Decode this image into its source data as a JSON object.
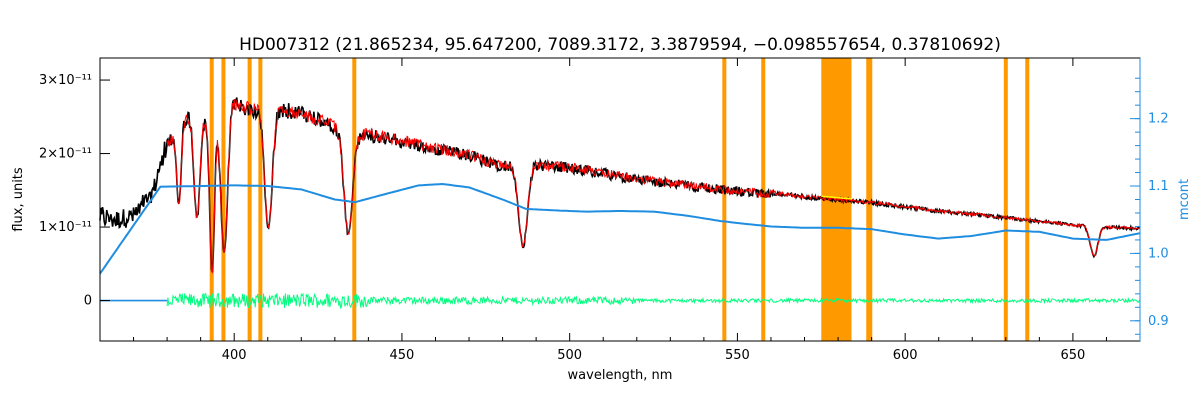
{
  "chart_data": {
    "type": "line",
    "title": "HD007312   (21.865234, 95.647200, 7089.3172, 3.3879594, −0.098557654, 0.37810692)",
    "xlabel": "wavelength, nm",
    "ylabel": "flux, units",
    "ylabel_right": "mcont",
    "xlim": [
      360,
      670
    ],
    "ylim": [
      -5.5e-12,
      3.3e-11
    ],
    "ylim_right": [
      0.87,
      1.29
    ],
    "x_ticks": [
      {
        "value": 400,
        "label": "400"
      },
      {
        "value": 450,
        "label": "450"
      },
      {
        "value": 500,
        "label": "500"
      },
      {
        "value": 550,
        "label": "550"
      },
      {
        "value": 600,
        "label": "600"
      },
      {
        "value": 650,
        "label": "650"
      }
    ],
    "y_ticks": [
      {
        "value": 0,
        "label": "0"
      },
      {
        "value": 1e-11,
        "label": "1×10⁻¹¹"
      },
      {
        "value": 2e-11,
        "label": "2×10⁻¹¹"
      },
      {
        "value": 3e-11,
        "label": "3×10⁻¹¹"
      }
    ],
    "y_ticks_right": [
      {
        "value": 0.9,
        "label": "0.9"
      },
      {
        "value": 1.0,
        "label": "1.0"
      },
      {
        "value": 1.1,
        "label": "1.1"
      },
      {
        "value": 1.2,
        "label": "1.2"
      }
    ],
    "colors": {
      "observed": "#000000",
      "model": "#ff0000",
      "continuum": "#1f8de0",
      "residual": "#00ff7f",
      "mask": "#ff9900",
      "highlight": "#ffff00",
      "frame": "#000000",
      "right_axis": "#1f8de0"
    },
    "masked_lines_nm": [
      393.3,
      396.8,
      404.6,
      407.8,
      435.8,
      546.1,
      557.7,
      589.0,
      589.6,
      630.0,
      636.4
    ],
    "masked_band_nm": [
      575.0,
      584.0
    ],
    "continuum_series": {
      "name": "mcont",
      "x": [
        360,
        378,
        390,
        400,
        410,
        420,
        430,
        436,
        445,
        455,
        462,
        470,
        480,
        487,
        495,
        505,
        515,
        525,
        535,
        545,
        552,
        560,
        570,
        580,
        590,
        600,
        610,
        620,
        630,
        640,
        650,
        660,
        670
      ],
      "y": [
        0.97,
        1.099,
        1.1,
        1.101,
        1.1,
        1.095,
        1.08,
        1.076,
        1.088,
        1.101,
        1.103,
        1.098,
        1.08,
        1.066,
        1.064,
        1.062,
        1.063,
        1.062,
        1.056,
        1.048,
        1.044,
        1.04,
        1.038,
        1.038,
        1.036,
        1.028,
        1.022,
        1.026,
        1.034,
        1.032,
        1.022,
        1.02,
        1.03
      ]
    },
    "flux_anchors": {
      "x": [
        360,
        365,
        370,
        375,
        380,
        385,
        390,
        395,
        400,
        405,
        410,
        415,
        420,
        425,
        430,
        435,
        440,
        445,
        450,
        455,
        460,
        470,
        480,
        490,
        500,
        510,
        520,
        530,
        540,
        550,
        560,
        570,
        580,
        590,
        600,
        610,
        620,
        630,
        640,
        650,
        660,
        670
      ],
      "y": [
        1.2e-11,
        1.15e-11,
        1.2e-11,
        1.45e-11,
        2.2e-11,
        2.6e-11,
        2.55e-11,
        2.6e-11,
        2.8e-11,
        2.7e-11,
        2.7e-11,
        2.7e-11,
        2.65e-11,
        2.55e-11,
        2.45e-11,
        2.35e-11,
        2.35e-11,
        2.3e-11,
        2.25e-11,
        2.2e-11,
        2.15e-11,
        2.05e-11,
        1.9e-11,
        1.92e-11,
        1.88e-11,
        1.8e-11,
        1.72e-11,
        1.66e-11,
        1.6e-11,
        1.55e-11,
        1.5e-11,
        1.44e-11,
        1.4e-11,
        1.36e-11,
        1.3e-11,
        1.24e-11,
        1.2e-11,
        1.15e-11,
        1.1e-11,
        1.05e-11,
        1.02e-11,
        1e-11
      ]
    },
    "absorption_lines": [
      {
        "center": 383.5,
        "depth": 0.45,
        "width": 1.0
      },
      {
        "center": 388.9,
        "depth": 0.55,
        "width": 1.2
      },
      {
        "center": 393.4,
        "depth": 0.85,
        "width": 1.0
      },
      {
        "center": 397.0,
        "depth": 0.75,
        "width": 1.4
      },
      {
        "center": 410.2,
        "depth": 0.62,
        "width": 1.6
      },
      {
        "center": 434.0,
        "depth": 0.6,
        "width": 1.8
      },
      {
        "center": 486.1,
        "depth": 0.6,
        "width": 1.8
      },
      {
        "center": 656.3,
        "depth": 0.4,
        "width": 1.6
      }
    ]
  }
}
